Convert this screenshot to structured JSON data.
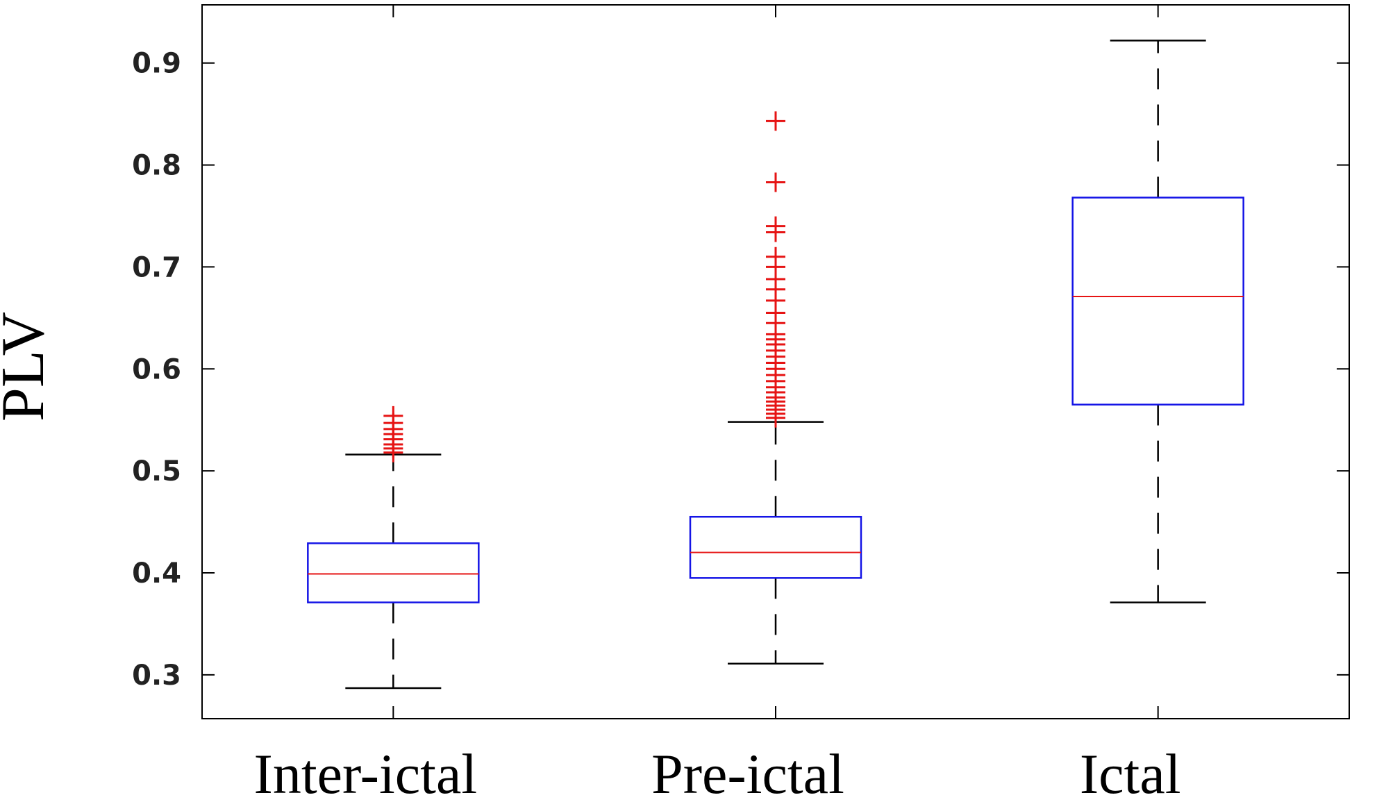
{
  "chart_data": {
    "type": "boxplot",
    "title": "",
    "xlabel": "",
    "ylabel": "PLV",
    "ylim": [
      0.257,
      0.957
    ],
    "yticks": [
      0.3,
      0.4,
      0.5,
      0.6,
      0.7,
      0.8,
      0.9
    ],
    "categories": [
      "Inter-ictal",
      "Pre-ictal",
      "Ictal"
    ],
    "grid": false,
    "legend": "none",
    "colors": {
      "box": "#1414e6",
      "median": "#e61414",
      "whisker": "#000000",
      "outlier": "#e61414"
    },
    "boxes": [
      {
        "category": "Inter-ictal",
        "whisker_low": 0.287,
        "q1": 0.371,
        "median": 0.399,
        "q3": 0.429,
        "whisker_high": 0.516,
        "outliers": [
          0.518,
          0.522,
          0.526,
          0.531,
          0.536,
          0.541,
          0.547,
          0.554
        ]
      },
      {
        "category": "Pre-ictal",
        "whisker_low": 0.311,
        "q1": 0.395,
        "median": 0.42,
        "q3": 0.455,
        "whisker_high": 0.548,
        "outliers": [
          0.552,
          0.556,
          0.56,
          0.564,
          0.568,
          0.572,
          0.577,
          0.582,
          0.588,
          0.594,
          0.6,
          0.606,
          0.612,
          0.618,
          0.624,
          0.629,
          0.634,
          0.645,
          0.655,
          0.667,
          0.678,
          0.688,
          0.7,
          0.71,
          0.734,
          0.74,
          0.783,
          0.843
        ]
      },
      {
        "category": "Ictal",
        "whisker_low": 0.371,
        "q1": 0.565,
        "median": 0.671,
        "q3": 0.768,
        "whisker_high": 0.922,
        "outliers": []
      }
    ]
  }
}
